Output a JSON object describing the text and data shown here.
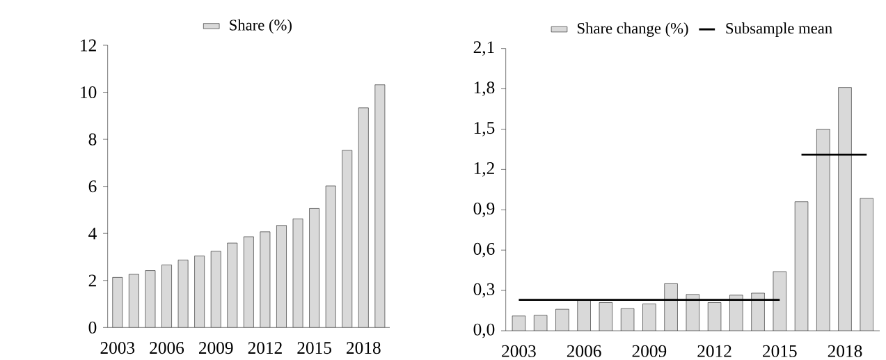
{
  "chart_data": [
    {
      "type": "bar",
      "categories": [
        "2003",
        null,
        null,
        "2006",
        null,
        null,
        "2009",
        null,
        null,
        "2012",
        null,
        null,
        "2015",
        null,
        null,
        "2018",
        null
      ],
      "series": [
        {
          "name": "Share (%)",
          "color": "#d9d9d9",
          "values": [
            2.13,
            2.26,
            2.42,
            2.66,
            2.87,
            3.04,
            3.24,
            3.59,
            3.86,
            4.07,
            4.34,
            4.62,
            5.06,
            6.02,
            7.53,
            9.34,
            10.32
          ]
        }
      ],
      "ylim": [
        0,
        12
      ],
      "yticks": [
        0,
        2,
        4,
        6,
        8,
        10,
        12
      ],
      "legend": "top"
    },
    {
      "type": "bar",
      "categories": [
        "2003",
        null,
        null,
        "2006",
        null,
        null,
        "2009",
        null,
        null,
        "2012",
        null,
        null,
        "2015",
        null,
        null,
        "2018",
        null
      ],
      "series": [
        {
          "name": "Share change (%)",
          "color": "#d9d9d9",
          "values": [
            0.11,
            0.115,
            0.16,
            0.23,
            0.21,
            0.165,
            0.2,
            0.35,
            0.27,
            0.21,
            0.265,
            0.28,
            0.44,
            0.96,
            1.5,
            1.81,
            0.985
          ]
        },
        {
          "name": "Subsample mean",
          "type": "line",
          "color": "#000000",
          "values": [
            0.23,
            0.23,
            0.23,
            0.23,
            0.23,
            0.23,
            0.23,
            0.23,
            0.23,
            0.23,
            0.23,
            0.23,
            0.23,
            null,
            null,
            null,
            null
          ]
        },
        {
          "type": "line",
          "color": "#000000",
          "values": [
            null,
            null,
            null,
            null,
            null,
            null,
            null,
            null,
            null,
            null,
            null,
            null,
            null,
            1.31,
            1.31,
            1.31,
            1.31
          ]
        }
      ],
      "ylim": [
        0,
        2.1
      ],
      "yticks": [
        {
          "value": 0,
          "label": "0,0"
        },
        {
          "value": 0.3,
          "label": "0,3"
        },
        {
          "value": 0.6,
          "label": "0,6"
        },
        {
          "value": 0.9,
          "label": "0,9"
        },
        {
          "value": 1.2,
          "label": "1,2"
        },
        {
          "value": 1.5,
          "label": "1,5"
        },
        {
          "value": 1.8,
          "label": "1,8"
        },
        {
          "value": 2.1,
          "label": "2,1"
        }
      ],
      "legend": "top"
    }
  ]
}
